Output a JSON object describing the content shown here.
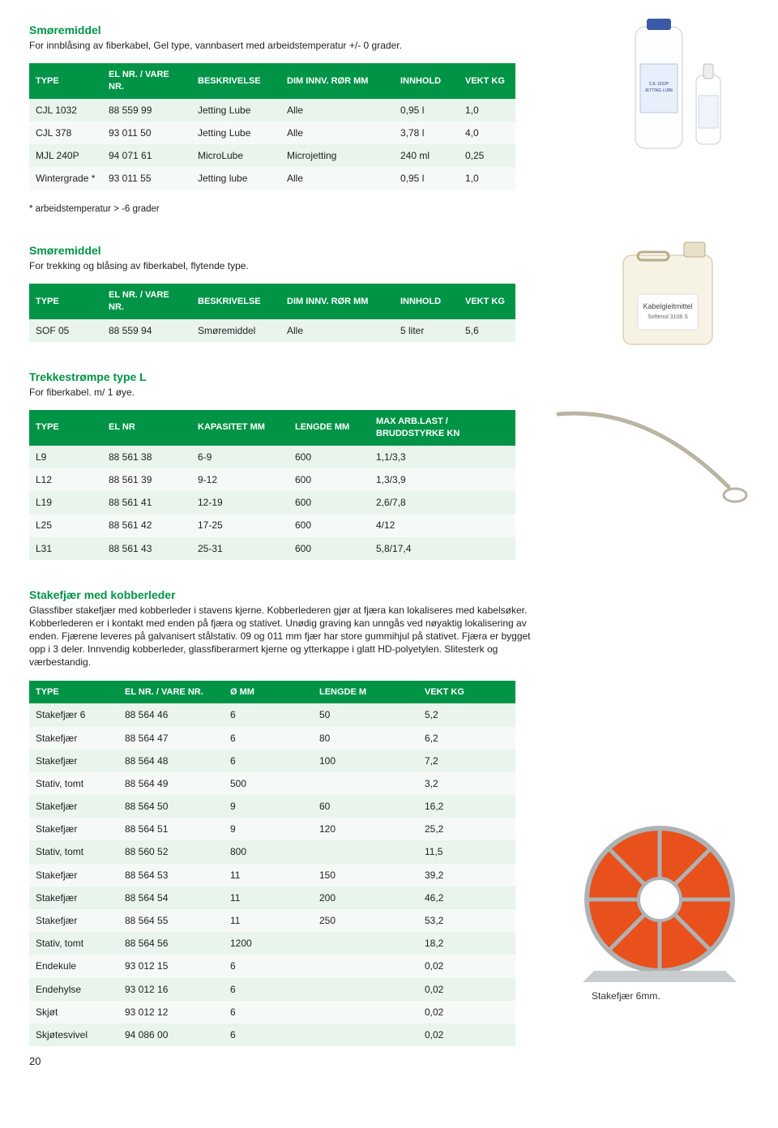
{
  "page_number": "20",
  "colors": {
    "accent": "#019447",
    "row_even": "#e8f4ec",
    "row_odd": "#f6faf7",
    "text": "#222222"
  },
  "section1": {
    "title": "Smøremiddel",
    "desc": "For innblåsing av fiberkabel, Gel type, vannbasert med arbeidstemperatur +/- 0 grader.",
    "footnote": "* arbeidstemperatur > -6 grader",
    "table": {
      "headers": [
        "TYPE",
        "EL NR. / VARE NR.",
        "BESKRIVELSE",
        "DIM INNV. RØR MM",
        "INNHOLD",
        "VEKT KG"
      ],
      "col_widths": [
        "90px",
        "110px",
        "110px",
        "140px",
        "80px",
        "70px"
      ],
      "rows": [
        [
          "CJL 1032",
          "88 559 99",
          "Jetting Lube",
          "Alle",
          "0,95 l",
          "1,0"
        ],
        [
          "CJL 378",
          "93 011 50",
          "Jetting Lube",
          "Alle",
          "3,78 l",
          "4,0"
        ],
        [
          "MJL 240P",
          "94 071 61",
          "MicroLube",
          "Microjetting",
          "240 ml",
          "0,25"
        ],
        [
          "Wintergrade *",
          "93 011 55",
          "Jetting lube",
          "Alle",
          "0,95 l",
          "1,0"
        ]
      ]
    }
  },
  "section2": {
    "title": "Smøremiddel",
    "desc": "For trekking og blåsing av fiberkabel, flytende type.",
    "table": {
      "headers": [
        "TYPE",
        "EL NR. / VARE NR.",
        "BESKRIVELSE",
        "DIM INNV. RØR MM",
        "INNHOLD",
        "VEKT KG"
      ],
      "col_widths": [
        "90px",
        "110px",
        "110px",
        "140px",
        "80px",
        "70px"
      ],
      "rows": [
        [
          "SOF 05",
          "88 559 94",
          "Smøremiddel",
          "Alle",
          "5 liter",
          "5,6"
        ]
      ]
    }
  },
  "section3": {
    "title": "Trekkestrømpe type L",
    "desc": "For fiberkabel. m/ 1 øye.",
    "table": {
      "headers": [
        "TYPE",
        "EL NR",
        "KAPASITET MM",
        "LENGDE MM",
        "MAX ARB.LAST / BRUDDSTYRKE KN"
      ],
      "col_widths": [
        "90px",
        "110px",
        "120px",
        "100px",
        "180px"
      ],
      "rows": [
        [
          "L9",
          "88 561 38",
          "6-9",
          "600",
          "1,1/3,3"
        ],
        [
          "L12",
          "88 561 39",
          "9-12",
          "600",
          "1,3/3,9"
        ],
        [
          "L19",
          "88 561 41",
          "12-19",
          "600",
          "2,6/7,8"
        ],
        [
          "L25",
          "88 561 42",
          "17-25",
          "600",
          "4/12"
        ],
        [
          "L31",
          "88 561 43",
          "25-31",
          "600",
          "5,8/17,4"
        ]
      ]
    }
  },
  "section4": {
    "title": "Stakefjær med kobberleder",
    "desc": "Glassfiber stakefjær med kobberleder i stavens kjerne. Kobberlederen gjør at fjæra kan lokaliseres med kabelsøker. Kobberlederen er i kontakt med enden på fjæra og stativet. Unødig graving kan unngås ved nøyaktig lokalisering av enden. Fjærene leveres på galvanisert stålstativ. 09 og 011 mm fjær har store gummihjul på stativet. Fjæra er bygget opp i 3 deler. Innvendig kobberleder, glassfiberarmert kjerne og ytterkappe i glatt HD-polyetylen. Slitesterk og værbestandig.",
    "caption": "Stakefjær 6mm.",
    "table": {
      "headers": [
        "TYPE",
        "EL NR. / VARE NR.",
        "Ø MM",
        "LENGDE M",
        "VEKT KG"
      ],
      "col_widths": [
        "110px",
        "130px",
        "110px",
        "130px",
        "120px"
      ],
      "rows": [
        [
          "Stakefjær 6",
          "88 564 46",
          "6",
          "50",
          "5,2"
        ],
        [
          "Stakefjær",
          "88 564 47",
          "6",
          "80",
          "6,2"
        ],
        [
          "Stakefjær",
          "88 564 48",
          "6",
          "100",
          "7,2"
        ],
        [
          "Stativ, tomt",
          "88 564 49",
          "500",
          "",
          "3,2"
        ],
        [
          "Stakefjær",
          "88 564 50",
          "9",
          "60",
          "16,2"
        ],
        [
          "Stakefjær",
          "88 564 51",
          "9",
          "120",
          "25,2"
        ],
        [
          "Stativ, tomt",
          "88 560 52",
          "800",
          "",
          "11,5"
        ],
        [
          "Stakefjær",
          "88 564 53",
          "11",
          "150",
          "39,2"
        ],
        [
          "Stakefjær",
          "88 564 54",
          "11",
          "200",
          "46,2"
        ],
        [
          "Stakefjær",
          "88 564 55",
          "11",
          "250",
          "53,2"
        ],
        [
          "Stativ, tomt",
          "88 564 56",
          "1200",
          "",
          "18,2"
        ],
        [
          "Endekule",
          "93 012 15",
          "6",
          "",
          "0,02"
        ],
        [
          "Endehylse",
          "93 012 16",
          "6",
          "",
          "0,02"
        ],
        [
          "Skjøt",
          "93 012 12",
          "6",
          "",
          "0,02"
        ],
        [
          "Skjøtesvivel",
          "94 086 00",
          "6",
          "",
          "0,02"
        ]
      ]
    }
  }
}
